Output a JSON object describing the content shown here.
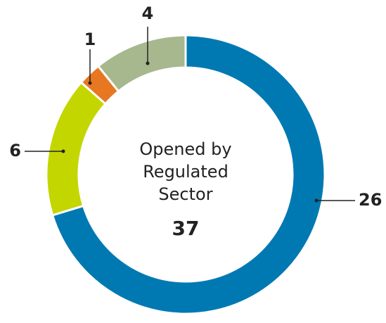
{
  "chart_data": {
    "type": "donut",
    "values": [
      26,
      6,
      1,
      4
    ],
    "colors": [
      "#0079b3",
      "#c4d600",
      "#e87722",
      "#a7b88f"
    ],
    "center_text": [
      "Opened by",
      "Regulated",
      "Sector"
    ],
    "total": 37
  }
}
